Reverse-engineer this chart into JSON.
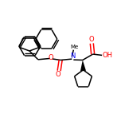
{
  "bg_color": "#ffffff",
  "line_color": "#000000",
  "oxygen_color": "#ff0000",
  "nitrogen_color": "#0000ff",
  "bond_lw": 1.1,
  "figsize": [
    1.52,
    1.52
  ],
  "dpi": 100,
  "xlim": [
    0,
    152
  ],
  "ylim": [
    0,
    152
  ]
}
